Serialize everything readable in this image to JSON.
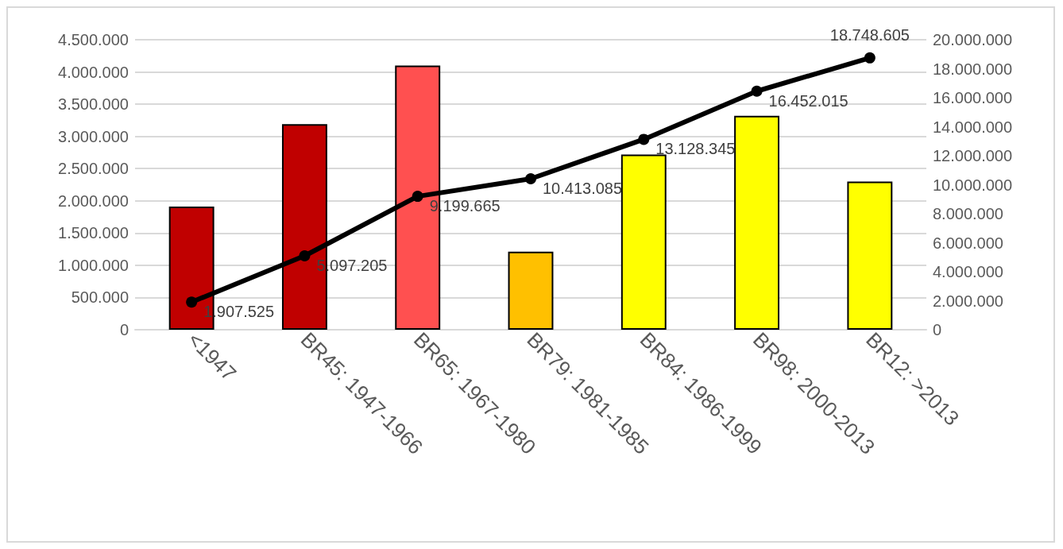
{
  "chart_data": {
    "type": "bar",
    "categories": [
      "<1947",
      "BR45: 1947-1966",
      "BR65: 1967-1980",
      "BR79: 1981-1985",
      "BR84: 1986-1999",
      "BR98: 2000-2013",
      "BR12: >2013"
    ],
    "series": [
      {
        "colors": [
          "#c00000",
          "#c00000",
          "#ff5050",
          "#ffc000",
          "#ffff00",
          "#ffff00",
          "#ffff00"
        ],
        "values": [
          1910000,
          3190000,
          4100000,
          1210000,
          2720000,
          3320000,
          2300000
        ]
      },
      {
        "type": "line",
        "axis": "y2",
        "color": "#000000",
        "values": [
          1907525,
          5097205,
          9199665,
          10413085,
          13128345,
          16452015,
          18748605
        ],
        "value_labels": [
          "1.907.525",
          "5.097.205",
          "9.199.665",
          "10.413.085",
          "13.128.345",
          "16.452.015",
          "18.748.605"
        ]
      }
    ],
    "ylim": [
      0,
      4500000
    ],
    "yticks": [
      0,
      {
        "value": 500000,
        "label": "500.000"
      },
      {
        "value": 1000000,
        "label": "1.000.000"
      },
      {
        "value": 1500000,
        "label": "1.500.000"
      },
      {
        "value": 2000000,
        "label": "2.000.000"
      },
      {
        "value": 2500000,
        "label": "2.500.000"
      },
      {
        "value": 3000000,
        "label": "3.000.000"
      },
      {
        "value": 3500000,
        "label": "3.500.000"
      },
      {
        "value": 4000000,
        "label": "4.000.000"
      },
      {
        "value": 4500000,
        "label": "4.500.000"
      }
    ],
    "y2lim": [
      0,
      20000000
    ],
    "y2ticks": [
      0,
      {
        "value": 2000000,
        "label": "2.000.000"
      },
      {
        "value": 4000000,
        "label": "4.000.000"
      },
      {
        "value": 6000000,
        "label": "6.000.000"
      },
      {
        "value": 8000000,
        "label": "8.000.000"
      },
      {
        "value": 10000000,
        "label": "10.000.000"
      },
      {
        "value": 12000000,
        "label": "12.000.000"
      },
      {
        "value": 14000000,
        "label": "14.000.000"
      },
      {
        "value": 16000000,
        "label": "16.000.000"
      },
      {
        "value": 18000000,
        "label": "18.000.000"
      },
      {
        "value": 20000000,
        "label": "20.000.000"
      }
    ],
    "grid": "y",
    "marker": "circle"
  }
}
